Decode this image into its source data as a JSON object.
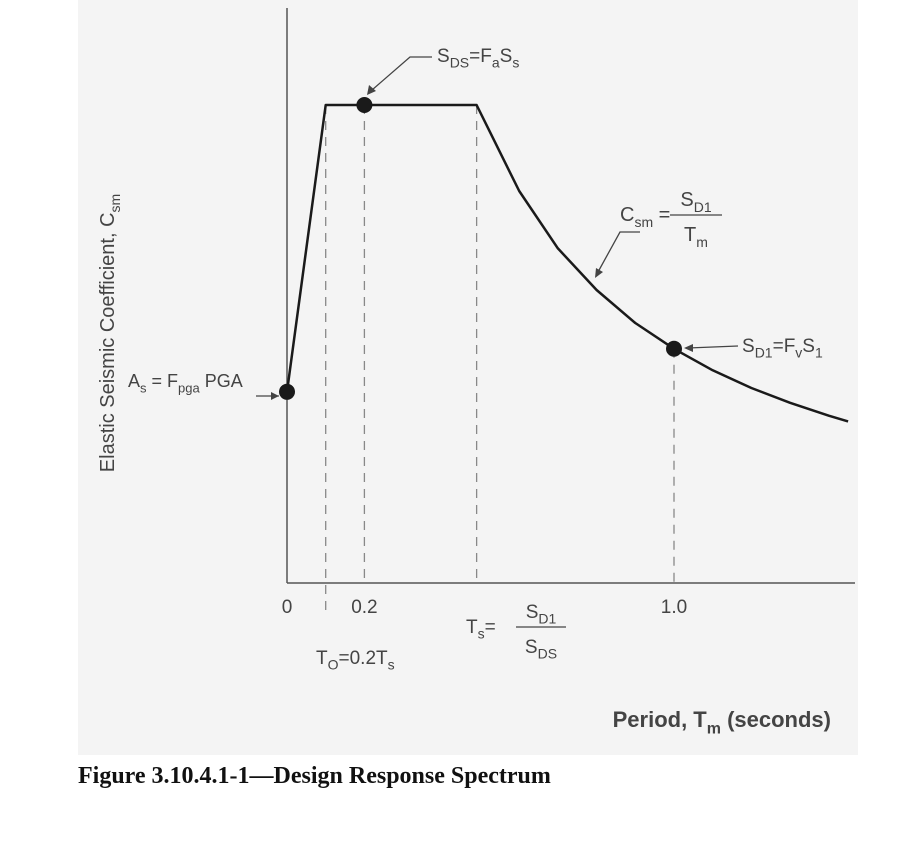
{
  "chart_data": {
    "type": "line",
    "title": "Figure 3.10.4.1-1—Design Response Spectrum",
    "xlabel": {
      "main": "Period, T",
      "sub": "m",
      "tail": " (seconds)"
    },
    "ylabel": {
      "main": "Elastic Seismic Coefficient, C",
      "sub": "sm"
    },
    "x_ticks": [
      "0",
      "0.2",
      "1.0"
    ],
    "series": [
      {
        "points": [
          [
            0,
            0.4
          ],
          [
            0.1,
            1.0
          ],
          [
            0.49,
            1.0
          ],
          [
            0.6,
            0.82
          ],
          [
            0.7,
            0.7
          ],
          [
            0.8,
            0.613
          ],
          [
            0.9,
            0.544
          ],
          [
            1.0,
            0.49
          ],
          [
            1.1,
            0.445
          ],
          [
            1.2,
            0.408
          ],
          [
            1.3,
            0.377
          ],
          [
            1.4,
            0.35
          ],
          [
            1.45,
            0.338
          ]
        ]
      }
    ],
    "key_points": [
      {
        "x": 0,
        "y": 0.4,
        "label": "A_s = F_pga PGA"
      },
      {
        "x": 0.2,
        "y": 1.0,
        "label": "S_DS = F_a S_s"
      },
      {
        "x": 1.0,
        "y": 0.49,
        "label": "S_D1 = F_v S_1"
      }
    ],
    "reference_lines_x": [
      0.1,
      0.2,
      0.49,
      1.0
    ],
    "annotations": {
      "As": {
        "parts": [
          [
            "A",
            ""
          ],
          [
            "s",
            "sub"
          ],
          [
            " = F",
            ""
          ],
          [
            "pga",
            "sub"
          ],
          [
            " PGA",
            ""
          ]
        ]
      },
      "SDS": {
        "parts": [
          [
            "S",
            ""
          ],
          [
            "DS",
            "sub"
          ],
          [
            "=F",
            ""
          ],
          [
            "a",
            "sub"
          ],
          [
            "S",
            ""
          ],
          [
            "s",
            "sub"
          ]
        ]
      },
      "SD1": {
        "parts": [
          [
            "S",
            ""
          ],
          [
            "D1",
            "sub"
          ],
          [
            "=F",
            ""
          ],
          [
            "v",
            "sub"
          ],
          [
            "S",
            ""
          ],
          [
            "1",
            "sub"
          ]
        ]
      },
      "Csm": {
        "lhs": [
          [
            "C",
            ""
          ],
          [
            "sm",
            "sub"
          ],
          [
            " =",
            ""
          ]
        ],
        "num": [
          [
            "S",
            ""
          ],
          [
            "D1",
            "sub"
          ]
        ],
        "den": [
          [
            "T",
            ""
          ],
          [
            "m",
            "sub"
          ]
        ]
      },
      "Ts": {
        "lhs": [
          [
            "T",
            ""
          ],
          [
            "s",
            "sub"
          ],
          [
            "=",
            ""
          ]
        ],
        "num": [
          [
            "S",
            ""
          ],
          [
            "D1",
            "sub"
          ]
        ],
        "den": [
          [
            "S",
            ""
          ],
          [
            "DS",
            "sub"
          ]
        ]
      },
      "T0": {
        "parts": [
          [
            "T",
            ""
          ],
          [
            "O",
            "sub"
          ],
          [
            "=0.2T",
            ""
          ],
          [
            "s",
            "sub"
          ]
        ]
      }
    },
    "grid": false,
    "colors": {
      "curve": "#1a1a1a",
      "axis": "#555555",
      "dashed": "#888888",
      "marker": "#1a1a1a",
      "text": "#444444"
    }
  }
}
